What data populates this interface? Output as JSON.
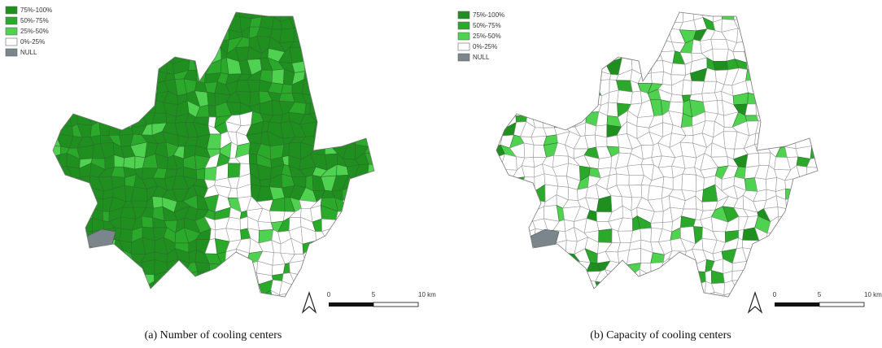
{
  "panels": [
    {
      "caption": "(a) Number of cooling centers",
      "legend": [
        {
          "label": "75%-100%",
          "color": "#1f8f1f"
        },
        {
          "label": "50%-75%",
          "color": "#2aa92a"
        },
        {
          "label": "25%-50%",
          "color": "#4fd24f"
        },
        {
          "label": "0%-25%",
          "color": "#ffffff"
        },
        {
          "label": "NULL",
          "color": "#7b858c"
        }
      ],
      "scale_labels": [
        "0",
        "5",
        "10 km"
      ]
    },
    {
      "caption": "(b) Capacity of cooling centers",
      "legend": [
        {
          "label": "75%-100%",
          "color": "#1f8f1f"
        },
        {
          "label": "50%-75%",
          "color": "#2aa92a"
        },
        {
          "label": "25%-50%",
          "color": "#4fd24f"
        },
        {
          "label": "0%-25%",
          "color": "#ffffff"
        },
        {
          "label": "NULL",
          "color": "#7b858c"
        }
      ],
      "scale_labels": [
        "0",
        "5",
        "10 km"
      ]
    }
  ]
}
